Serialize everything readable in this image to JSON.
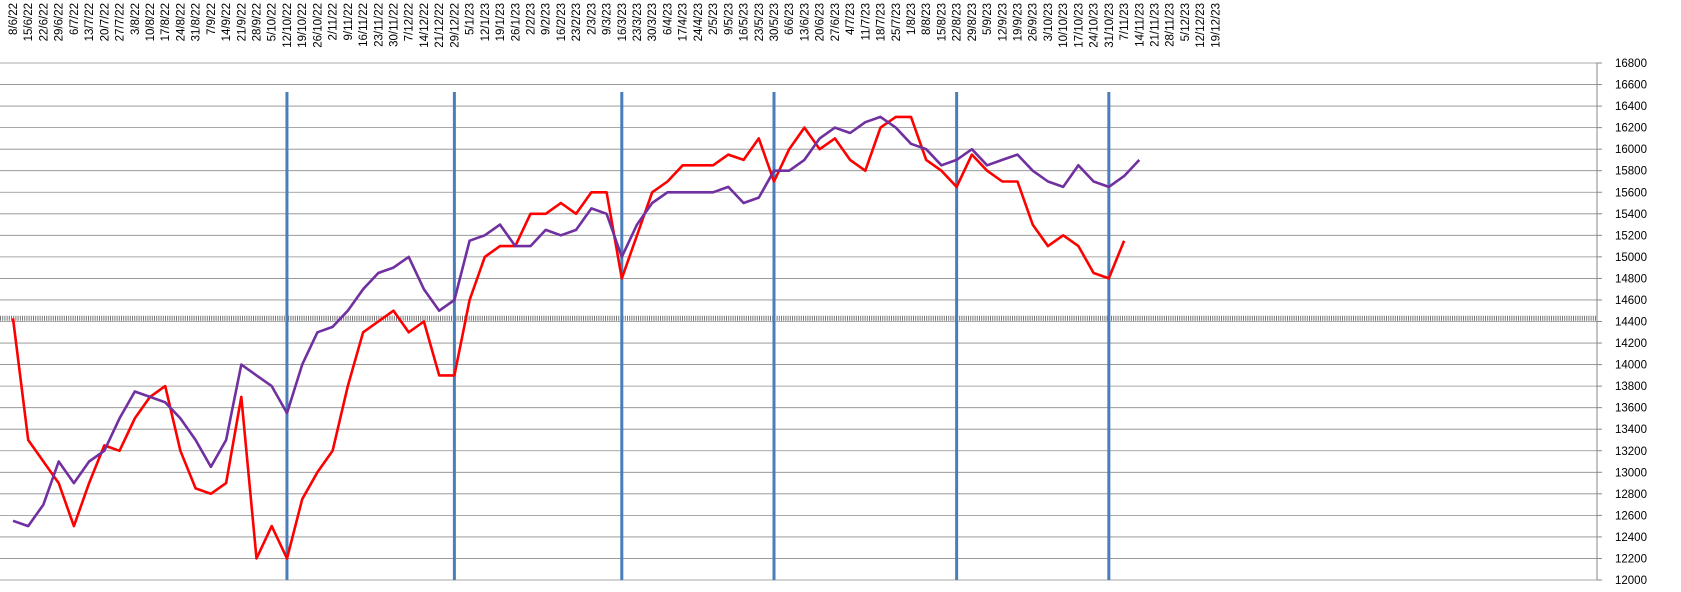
{
  "chart_data": {
    "type": "line",
    "categories": [
      "8/6/22",
      "15/6/22",
      "22/6/22",
      "29/6/22",
      "6/7/22",
      "13/7/22",
      "20/7/22",
      "27/7/22",
      "3/8/22",
      "10/8/22",
      "17/8/22",
      "24/8/22",
      "31/8/22",
      "7/9/22",
      "14/9/22",
      "21/9/22",
      "28/9/22",
      "5/10/22",
      "12/10/22",
      "19/10/22",
      "26/10/22",
      "2/11/22",
      "9/11/22",
      "16/11/22",
      "23/11/22",
      "30/11/22",
      "7/12/22",
      "14/12/22",
      "21/12/22",
      "29/12/22",
      "5/1/23",
      "12/1/23",
      "19/1/23",
      "26/1/23",
      "2/2/23",
      "9/2/23",
      "16/2/23",
      "23/2/23",
      "2/3/23",
      "9/3/23",
      "16/3/23",
      "23/3/23",
      "30/3/23",
      "6/4/23",
      "17/4/23",
      "24/4/23",
      "2/5/23",
      "9/5/23",
      "16/5/23",
      "23/5/23",
      "30/5/23",
      "6/6/23",
      "13/6/23",
      "20/6/23",
      "27/6/23",
      "4/7/23",
      "11/7/23",
      "18/7/23",
      "25/7/23",
      "1/8/23",
      "8/8/23",
      "15/8/23",
      "22/8/23",
      "29/8/23",
      "5/9/23",
      "12/9/23",
      "19/9/23",
      "26/9/23",
      "3/10/23",
      "10/10/23",
      "17/10/23",
      "24/10/23",
      "31/10/23",
      "7/11/23",
      "14/11/23",
      "21/11/23",
      "28/11/23",
      "5/12/23",
      "12/12/23",
      "19/12/23"
    ],
    "series": [
      {
        "color": "#ff0000",
        "values": [
          14430,
          13300,
          13100,
          12900,
          12500,
          12900,
          13250,
          13200,
          13500,
          13700,
          13800,
          13200,
          12850,
          12800,
          12900,
          13700,
          12200,
          12500,
          12200,
          12750,
          13000,
          13200,
          13800,
          14300,
          14400,
          14500,
          14300,
          14400,
          13900,
          13900,
          14600,
          15000,
          15100,
          15100,
          15400,
          15400,
          15500,
          15400,
          15600,
          15600,
          14800,
          15200,
          15600,
          15700,
          15850,
          15850,
          15850,
          15950,
          15900,
          16100,
          15700,
          16000,
          16200,
          16000,
          16100,
          15900,
          15800,
          16200,
          16300,
          16300,
          15900,
          15800,
          15650,
          15950,
          15800,
          15700,
          15700,
          15300,
          15100,
          15200,
          15100,
          14850,
          14800,
          15150,
          null,
          null,
          null,
          null,
          null,
          null
        ]
      },
      {
        "color": "#7030a0",
        "values": [
          12550,
          12500,
          12700,
          13100,
          12900,
          13100,
          13200,
          13500,
          13750,
          13700,
          13650,
          13500,
          13300,
          13050,
          13300,
          14000,
          13900,
          13800,
          13550,
          14000,
          14300,
          14350,
          14500,
          14700,
          14850,
          14900,
          15000,
          14700,
          14500,
          14600,
          15150,
          15200,
          15300,
          15100,
          15100,
          15250,
          15200,
          15250,
          15450,
          15400,
          15000,
          15300,
          15500,
          15600,
          15600,
          15600,
          15600,
          15650,
          15500,
          15550,
          15800,
          15800,
          15900,
          16100,
          16200,
          16150,
          16250,
          16300,
          16200,
          16050,
          16000,
          15850,
          15900,
          16000,
          15850,
          15900,
          15950,
          15800,
          15700,
          15650,
          15850,
          15700,
          15650,
          15750,
          15900,
          null,
          null,
          null,
          null,
          null
        ]
      }
    ],
    "ylim": [
      12000,
      16800
    ],
    "yticks": [
      12000,
      12200,
      12400,
      12600,
      12800,
      13000,
      13200,
      13400,
      13600,
      13800,
      14000,
      14200,
      14400,
      14600,
      14800,
      15000,
      15200,
      15400,
      15600,
      15800,
      16000,
      16200,
      16400,
      16600,
      16800
    ],
    "grid": true,
    "vlines": [
      "12/10/22",
      "29/12/22",
      "16/3/23",
      "30/5/23",
      "22/8/23",
      "31/10/23"
    ],
    "vline_color": "#4a7ebb",
    "hline": 14430
  }
}
